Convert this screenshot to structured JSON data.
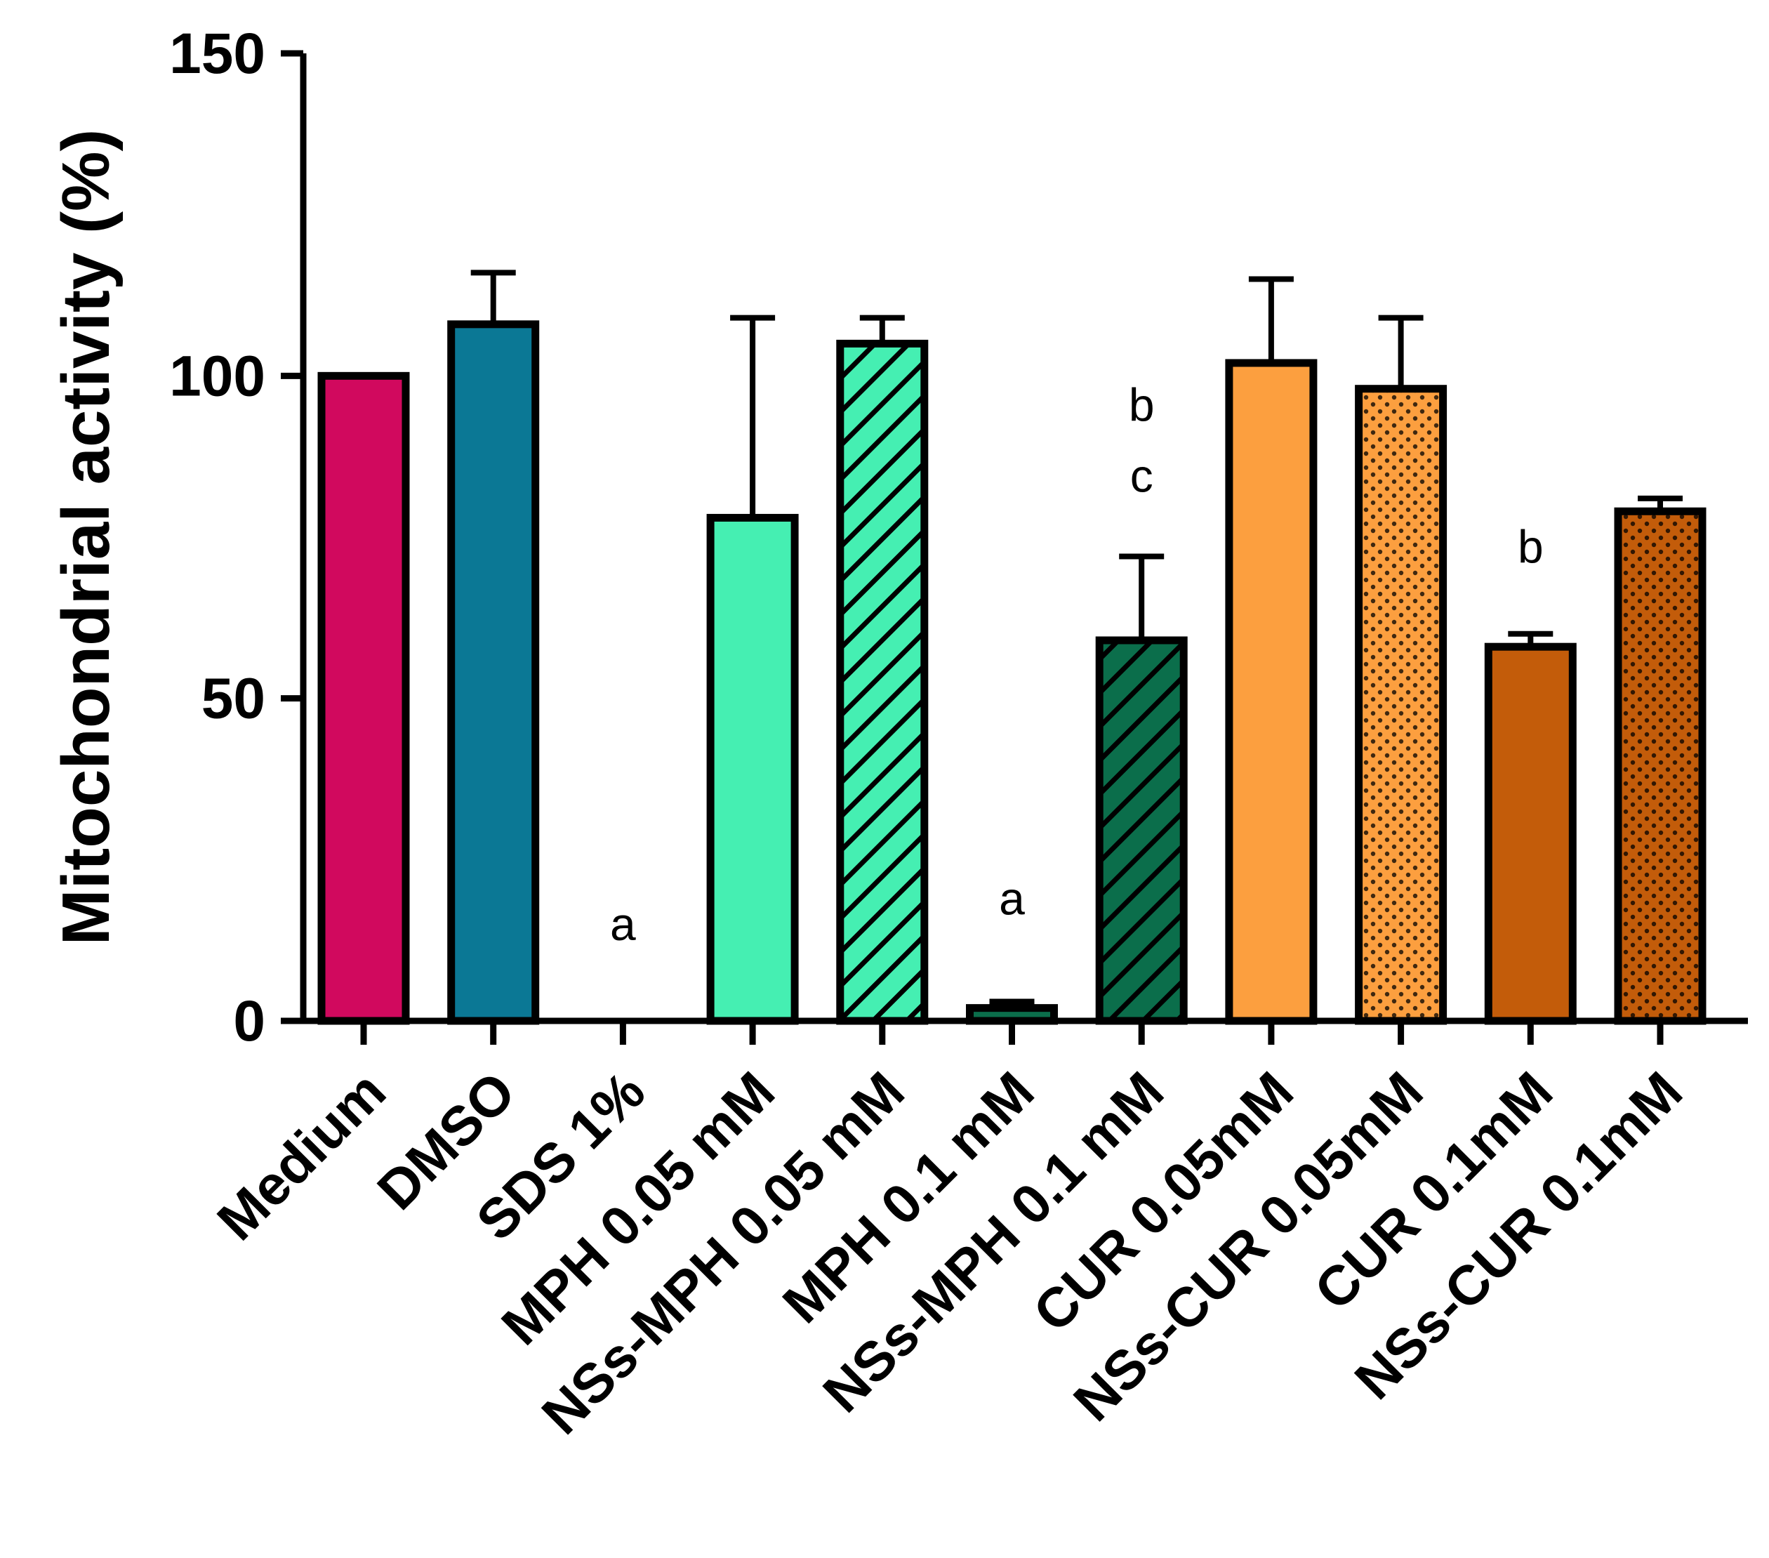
{
  "chart_data": {
    "type": "bar",
    "title": "",
    "xlabel": "",
    "ylabel": "Mitochondrial activity (%)",
    "ylim": [
      0,
      150
    ],
    "yticks": [
      0,
      50,
      100,
      150
    ],
    "grid": false,
    "categories": [
      "Medium",
      "DMSO",
      "SDS 1%",
      "MPH 0.05 mM",
      "NSs-MPH 0.05 mM",
      "MPH 0.1 mM",
      "NSs-MPH 0.1 mM",
      "CUR 0.05mM",
      "NSs-CUR 0.05mM",
      "CUR 0.1mM",
      "NSs-CUR 0.1mM"
    ],
    "values": [
      100,
      108,
      0,
      78,
      105,
      2,
      59,
      102,
      98,
      58,
      79
    ],
    "errors": [
      0,
      8,
      0,
      31,
      4,
      1,
      13,
      13,
      11,
      2,
      2
    ],
    "colors": [
      "#d1095e",
      "#0b7895",
      "#ffffff",
      "#45efb2",
      "#45efb2",
      "#0b6e4b",
      "#0b6e4b",
      "#fc9f3f",
      "#fc9f3f",
      "#c35c0a",
      "#c35c0a"
    ],
    "patterns": [
      "none",
      "none",
      "none",
      "none",
      "hatch",
      "none",
      "hatch",
      "none",
      "dots",
      "none",
      "dots"
    ],
    "annotations": [
      {
        "category": "SDS 1%",
        "text": "a",
        "y": 12.5
      },
      {
        "category": "MPH 0.1 mM",
        "text": "a",
        "y": 16.5
      },
      {
        "category": "NSs-MPH 0.1 mM",
        "text": "b",
        "y": 93
      },
      {
        "category": "NSs-MPH 0.1 mM",
        "text": "c",
        "y": 82
      },
      {
        "category": "CUR 0.1mM",
        "text": "b",
        "y": 71
      }
    ]
  }
}
